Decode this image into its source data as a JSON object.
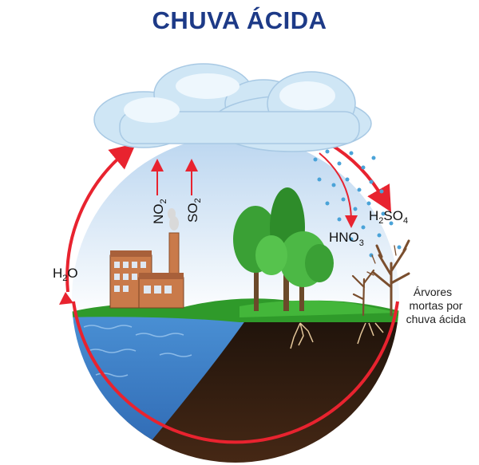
{
  "title": "CHUVA ÁCIDA",
  "labels": {
    "water": {
      "main": "H",
      "sub": "2",
      "tail": "O"
    },
    "no2": {
      "main": "NO",
      "sub": "2"
    },
    "so2": {
      "main": "SO",
      "sub": "2"
    },
    "hno3": {
      "main": "HNO",
      "sub": "3"
    },
    "h2so4": {
      "a": "H",
      "sub1": "2",
      "b": "SO",
      "sub2": "4"
    },
    "dead_trees_caption": [
      "Árvores",
      "mortas por",
      "chuva ácida"
    ]
  },
  "colors": {
    "title": "#1d3a87",
    "cycle_arrow": "#e8232f",
    "cloud": "#cfe6f5",
    "water": "#3a7fc9",
    "soil": "#2b1a10",
    "grass": "#2f9a2a",
    "building": "#c97a4a",
    "rain": "#4aa3d8"
  },
  "icons": [
    "cloud-icon",
    "factory-icon",
    "tree-icon",
    "dead-tree-icon",
    "raindrop-icon",
    "arrow-icon"
  ]
}
